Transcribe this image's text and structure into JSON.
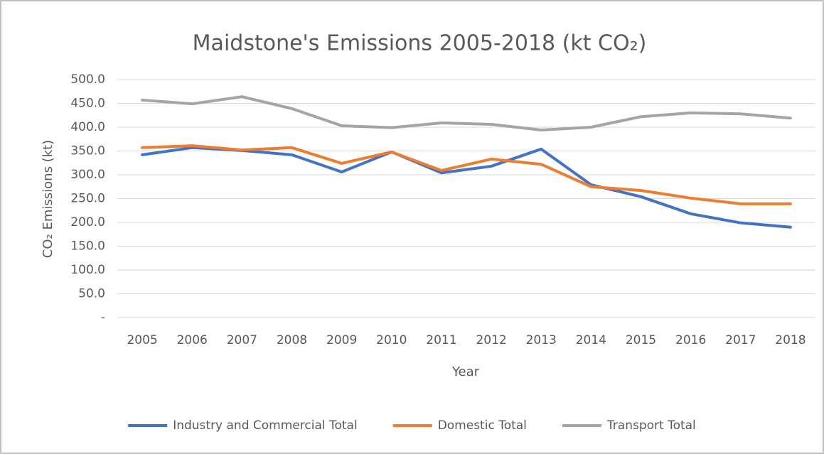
{
  "chart_data": {
    "type": "line",
    "title": "Maidstone's Emissions 2005-2018 (kt CO₂)",
    "x_label": "Year",
    "y_label": "CO₂ Emissions (kt)",
    "categories": [
      "2005",
      "2006",
      "2007",
      "2008",
      "2009",
      "2010",
      "2011",
      "2012",
      "2013",
      "2014",
      "2015",
      "2016",
      "2017",
      "2018"
    ],
    "series": [
      {
        "name": "Industry and Commercial Total",
        "color": "#4472c4",
        "values": [
          342,
          357,
          351,
          342,
          306,
          348,
          304,
          318,
          354,
          279,
          254,
          218,
          199,
          190
        ]
      },
      {
        "name": "Domestic Total",
        "color": "#ed7d31",
        "values": [
          357,
          361,
          352,
          357,
          324,
          348,
          309,
          333,
          322,
          275,
          267,
          251,
          239,
          239
        ]
      },
      {
        "name": "Transport Total",
        "color": "#a5a5a5",
        "values": [
          457,
          449,
          464,
          439,
          403,
          399,
          409,
          406,
          394,
          400,
          422,
          430,
          428,
          419
        ]
      }
    ],
    "ylim": [
      0,
      500
    ],
    "yticks": [
      {
        "value": 0,
        "label": "-"
      },
      {
        "value": 50,
        "label": "50.0"
      },
      {
        "value": 100,
        "label": "100.0"
      },
      {
        "value": 150,
        "label": "150.0"
      },
      {
        "value": 200,
        "label": "200.0"
      },
      {
        "value": 250,
        "label": "250.0"
      },
      {
        "value": 300,
        "label": "300.0"
      },
      {
        "value": 350,
        "label": "350.0"
      },
      {
        "value": 400,
        "label": "400.0"
      },
      {
        "value": 450,
        "label": "450.0"
      },
      {
        "value": 500,
        "label": "500.0"
      }
    ],
    "grid": true,
    "legend": "bottom"
  }
}
